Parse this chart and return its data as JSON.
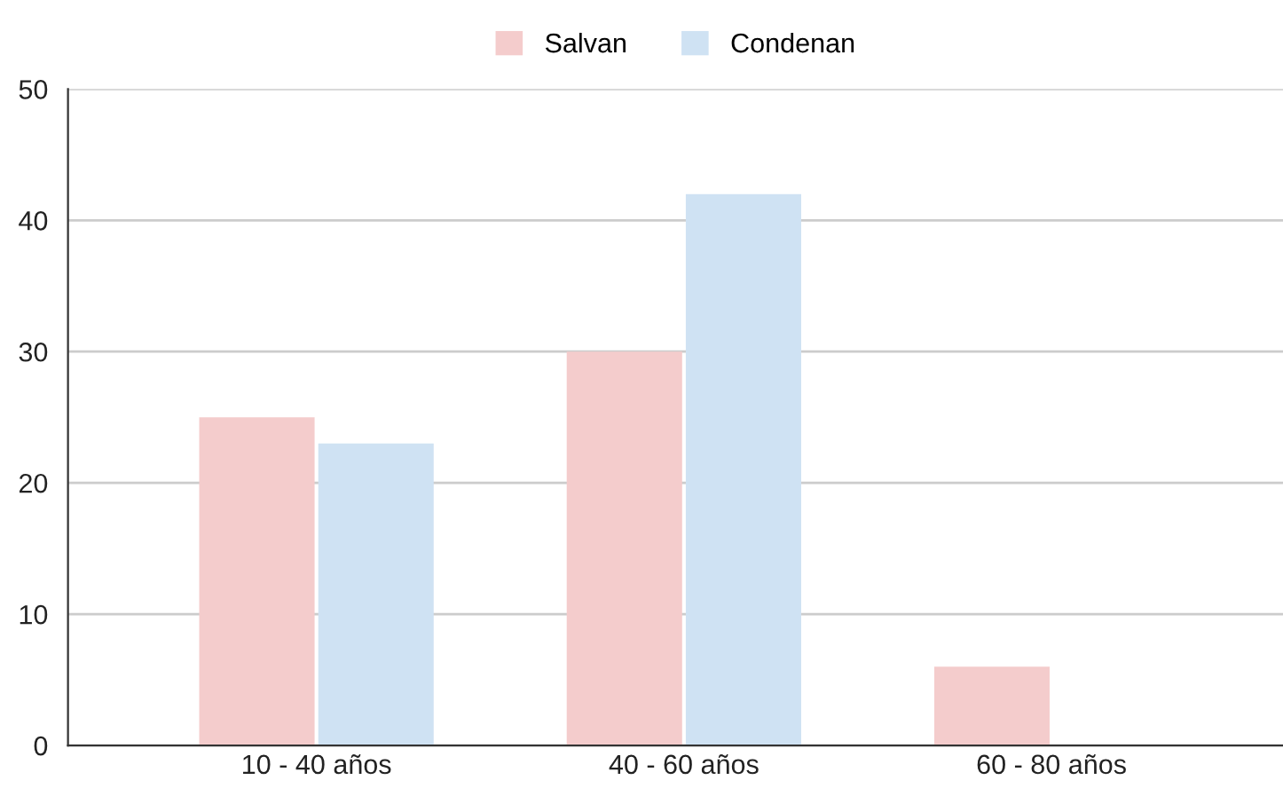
{
  "chart_data": {
    "type": "bar",
    "categories": [
      "10 - 40 años",
      "40 - 60 años",
      "60 - 80 años"
    ],
    "series": [
      {
        "name": "Salvan",
        "color": "#f4cccc",
        "values": [
          25,
          30,
          6
        ]
      },
      {
        "name": "Condenan",
        "color": "#cfe2f3",
        "values": [
          23,
          42,
          0
        ]
      }
    ],
    "ylim": [
      0,
      50
    ],
    "yticks": [
      0,
      10,
      20,
      30,
      40,
      50
    ],
    "grid": "y",
    "legend": "top"
  }
}
